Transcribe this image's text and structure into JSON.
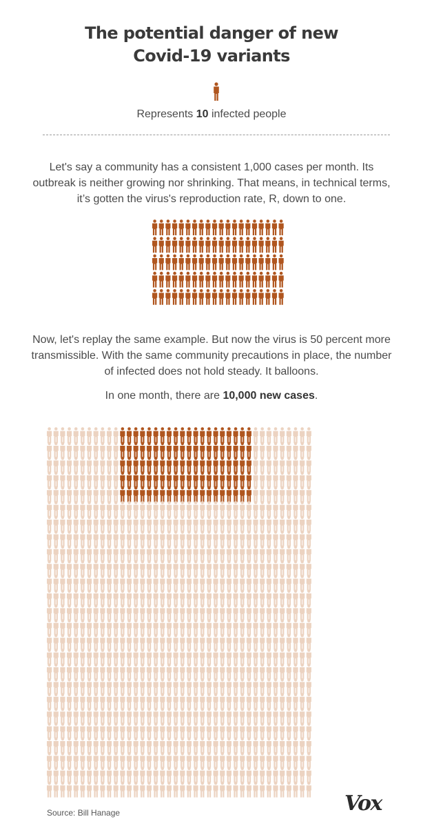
{
  "title_line1": "The potential danger of new",
  "title_line2": "Covid-19 variants",
  "legend": {
    "prefix": "Represents ",
    "value": "10",
    "suffix": " infected people"
  },
  "paragraph1": "Let's say a community has a consistent 1,000 cases per month. Its outbreak is neither growing nor shrinking. That means, in technical terms, it’s gotten the virus's reproduction rate, R, down to one.",
  "paragraph2": "Now, let's replay the same example. But now the virus is 50 percent more transmissible. With the same community precautions in place, the number of infected does not hold steady. It balloons.",
  "paragraph3": {
    "prefix": "In one month, there are ",
    "bold": "10,000 new cases",
    "suffix": "."
  },
  "source": "Source: Bill Hanage",
  "logo": "Vox",
  "colors": {
    "infected": "#b0561f",
    "new_cases": "#ecd3c1",
    "text": "#4a4a4a"
  },
  "chart_data": [
    {
      "type": "pictogram",
      "unit_value": 10,
      "unit_label": "infected people",
      "total": 1000,
      "icons": 100,
      "columns": 20,
      "rows": 5
    },
    {
      "type": "pictogram",
      "unit_value": 10,
      "total": 10000,
      "icons": 1000,
      "highlighted_icons": 100,
      "columns": 40,
      "rows": 25,
      "highlight_block": {
        "start_column": 11,
        "columns": 20,
        "start_row": 1,
        "rows": 5
      }
    }
  ]
}
